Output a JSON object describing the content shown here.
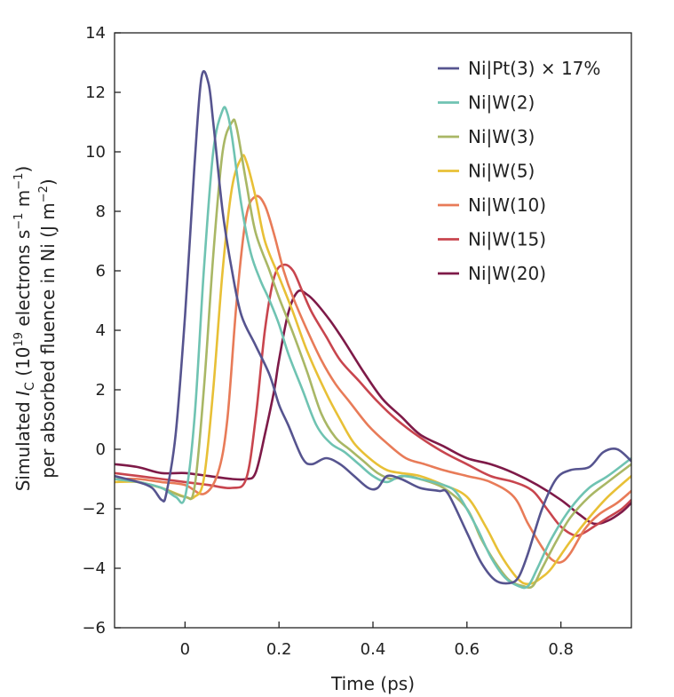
{
  "chart_data": {
    "type": "line",
    "xlabel": "Time (ps)",
    "ylabel": {
      "line1_pre": "Simulated ",
      "symbol": "I",
      "symbol_sub": "C",
      "line1_mid": " (10",
      "exp19": "19",
      "line1_units": " electrons s",
      "exp_neg1a": "−1",
      "line1_m": " m",
      "exp_neg1b": "−1",
      "line1_close": ")",
      "line2_pre": "per absorbed fluence in Ni (J m",
      "exp_neg2": "−2",
      "line2_close": ")"
    },
    "xlim": [
      -0.15,
      0.95
    ],
    "ylim": [
      -6,
      14
    ],
    "xticks": [
      0,
      0.2,
      0.4,
      0.6,
      0.8
    ],
    "xtick_labels": [
      "0",
      "0.2",
      "0.4",
      "0.6",
      "0.8"
    ],
    "yticks": [
      -6,
      -4,
      -2,
      0,
      2,
      4,
      6,
      8,
      10,
      12,
      14
    ],
    "ytick_labels": [
      "−6",
      "−4",
      "−2",
      "0",
      "2",
      "4",
      "6",
      "8",
      "10",
      "12",
      "14"
    ],
    "legend_position": "top-right",
    "series": [
      {
        "name": "Ni|Pt(3) × 17%",
        "color": "#56548f",
        "x": [
          -0.15,
          -0.1,
          -0.07,
          -0.05,
          -0.04,
          -0.02,
          0,
          0.02,
          0.035,
          0.05,
          0.06,
          0.08,
          0.1,
          0.12,
          0.15,
          0.18,
          0.2,
          0.22,
          0.25,
          0.27,
          0.3,
          0.33,
          0.36,
          0.39,
          0.41,
          0.43,
          0.46,
          0.5,
          0.54,
          0.56,
          0.6,
          0.63,
          0.66,
          0.69,
          0.71,
          0.73,
          0.76,
          0.79,
          0.82,
          0.86,
          0.89,
          0.92,
          0.95
        ],
        "y": [
          -0.9,
          -1.1,
          -1.3,
          -1.7,
          -1.5,
          0.5,
          4.5,
          9.5,
          12.5,
          12.3,
          11.0,
          8.0,
          6.0,
          4.5,
          3.5,
          2.5,
          1.5,
          0.8,
          -0.3,
          -0.5,
          -0.3,
          -0.5,
          -0.9,
          -1.3,
          -1.3,
          -0.9,
          -1.0,
          -1.3,
          -1.4,
          -1.5,
          -2.8,
          -3.8,
          -4.4,
          -4.5,
          -4.3,
          -3.5,
          -2.0,
          -1.0,
          -0.7,
          -0.6,
          -0.1,
          0.0,
          -0.4
        ]
      },
      {
        "name": "Ni|W(2)",
        "color": "#6fc3b2",
        "x": [
          -0.15,
          -0.1,
          -0.05,
          -0.02,
          0,
          0.02,
          0.04,
          0.06,
          0.08,
          0.09,
          0.1,
          0.12,
          0.14,
          0.16,
          0.18,
          0.2,
          0.22,
          0.25,
          0.28,
          0.31,
          0.34,
          0.37,
          0.4,
          0.43,
          0.46,
          0.5,
          0.55,
          0.58,
          0.62,
          0.65,
          0.68,
          0.71,
          0.73,
          0.75,
          0.78,
          0.82,
          0.86,
          0.9,
          0.95
        ],
        "y": [
          -1.0,
          -1.1,
          -1.3,
          -1.6,
          -1.6,
          1.0,
          6.0,
          10.0,
          11.4,
          11.3,
          10.5,
          8.2,
          6.6,
          5.7,
          5.0,
          4.2,
          3.2,
          2.0,
          0.8,
          0.2,
          -0.1,
          -0.5,
          -0.9,
          -1.1,
          -0.9,
          -1.0,
          -1.2,
          -1.5,
          -2.6,
          -3.6,
          -4.3,
          -4.6,
          -4.6,
          -4.0,
          -3.0,
          -2.0,
          -1.3,
          -0.9,
          -0.3
        ]
      },
      {
        "name": "Ni|W(3)",
        "color": "#a9b765",
        "x": [
          -0.15,
          -0.1,
          -0.05,
          0,
          0.02,
          0.04,
          0.06,
          0.08,
          0.1,
          0.11,
          0.13,
          0.15,
          0.18,
          0.2,
          0.23,
          0.26,
          0.29,
          0.32,
          0.35,
          0.38,
          0.41,
          0.44,
          0.47,
          0.5,
          0.55,
          0.6,
          0.63,
          0.66,
          0.69,
          0.72,
          0.74,
          0.76,
          0.79,
          0.82,
          0.86,
          0.9,
          0.95
        ],
        "y": [
          -1.0,
          -1.1,
          -1.3,
          -1.6,
          -1.3,
          2.0,
          6.5,
          10.0,
          11.0,
          10.8,
          9.0,
          7.3,
          6.0,
          5.1,
          3.9,
          2.6,
          1.2,
          0.4,
          0.0,
          -0.4,
          -0.8,
          -1.0,
          -0.9,
          -1.0,
          -1.3,
          -2.0,
          -3.0,
          -3.8,
          -4.4,
          -4.6,
          -4.6,
          -4.0,
          -3.1,
          -2.3,
          -1.6,
          -1.1,
          -0.5
        ]
      },
      {
        "name": "Ni|W(5)",
        "color": "#e8c036",
        "x": [
          -0.15,
          -0.1,
          -0.05,
          0,
          0.02,
          0.04,
          0.06,
          0.08,
          0.1,
          0.12,
          0.13,
          0.15,
          0.17,
          0.2,
          0.23,
          0.26,
          0.3,
          0.33,
          0.36,
          0.4,
          0.43,
          0.46,
          0.5,
          0.55,
          0.6,
          0.64,
          0.67,
          0.7,
          0.72,
          0.74,
          0.76,
          0.78,
          0.82,
          0.86,
          0.9,
          0.95
        ],
        "y": [
          -1.1,
          -1.1,
          -1.3,
          -1.6,
          -1.6,
          -1.0,
          2.0,
          6.0,
          8.8,
          9.8,
          9.7,
          8.5,
          7.0,
          5.8,
          4.6,
          3.3,
          1.9,
          1.0,
          0.2,
          -0.4,
          -0.7,
          -0.8,
          -0.9,
          -1.2,
          -1.6,
          -2.6,
          -3.5,
          -4.2,
          -4.5,
          -4.5,
          -4.3,
          -4.0,
          -3.1,
          -2.3,
          -1.6,
          -0.9
        ]
      },
      {
        "name": "Ni|W(10)",
        "color": "#e87b58",
        "x": [
          -0.15,
          -0.1,
          -0.05,
          0,
          0.04,
          0.07,
          0.09,
          0.11,
          0.13,
          0.15,
          0.17,
          0.19,
          0.21,
          0.23,
          0.26,
          0.29,
          0.32,
          0.35,
          0.39,
          0.43,
          0.47,
          0.51,
          0.55,
          0.6,
          0.65,
          0.7,
          0.73,
          0.76,
          0.78,
          0.8,
          0.82,
          0.85,
          0.88,
          0.92,
          0.95
        ],
        "y": [
          -1.0,
          -1.0,
          -1.1,
          -1.2,
          -1.5,
          -0.8,
          1.0,
          5.0,
          7.8,
          8.5,
          8.2,
          7.2,
          6.0,
          5.1,
          4.0,
          3.0,
          2.2,
          1.6,
          0.8,
          0.2,
          -0.3,
          -0.5,
          -0.7,
          -0.9,
          -1.1,
          -1.6,
          -2.5,
          -3.3,
          -3.7,
          -3.8,
          -3.5,
          -2.7,
          -2.2,
          -1.8,
          -1.4
        ]
      },
      {
        "name": "Ni|W(15)",
        "color": "#c8454e",
        "x": [
          -0.15,
          -0.1,
          -0.05,
          0,
          0.05,
          0.1,
          0.13,
          0.15,
          0.17,
          0.19,
          0.21,
          0.23,
          0.25,
          0.27,
          0.3,
          0.33,
          0.37,
          0.41,
          0.45,
          0.5,
          0.55,
          0.6,
          0.65,
          0.7,
          0.74,
          0.77,
          0.8,
          0.83,
          0.85,
          0.87,
          0.9,
          0.93,
          0.95
        ],
        "y": [
          -0.8,
          -0.9,
          -1.0,
          -1.1,
          -1.2,
          -1.3,
          -1.0,
          1.0,
          4.0,
          5.8,
          6.2,
          6.0,
          5.3,
          4.6,
          3.8,
          3.0,
          2.3,
          1.6,
          1.0,
          0.4,
          -0.1,
          -0.5,
          -0.9,
          -1.1,
          -1.4,
          -2.0,
          -2.6,
          -2.9,
          -2.8,
          -2.6,
          -2.3,
          -2.0,
          -1.7
        ]
      },
      {
        "name": "Ni|W(20)",
        "color": "#7e1a48",
        "x": [
          -0.15,
          -0.1,
          -0.05,
          0,
          0.05,
          0.1,
          0.13,
          0.15,
          0.17,
          0.19,
          0.2,
          0.22,
          0.24,
          0.26,
          0.28,
          0.31,
          0.34,
          0.38,
          0.42,
          0.46,
          0.5,
          0.55,
          0.6,
          0.65,
          0.7,
          0.75,
          0.8,
          0.84,
          0.87,
          0.9,
          0.93,
          0.95
        ],
        "y": [
          -0.5,
          -0.6,
          -0.8,
          -0.8,
          -0.9,
          -1.0,
          -1.0,
          -0.8,
          0.5,
          2.0,
          3.0,
          4.6,
          5.3,
          5.2,
          4.9,
          4.3,
          3.6,
          2.6,
          1.7,
          1.1,
          0.5,
          0.1,
          -0.3,
          -0.5,
          -0.8,
          -1.2,
          -1.7,
          -2.2,
          -2.5,
          -2.4,
          -2.1,
          -1.8
        ]
      }
    ]
  }
}
